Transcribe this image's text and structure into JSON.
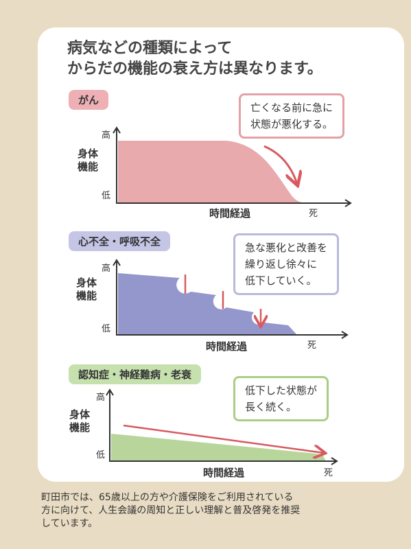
{
  "header": {
    "title_lines": [
      "病気などの種類によって",
      "からだの機能の衰え方は異なります。"
    ]
  },
  "panels": [
    {
      "tag": "がん",
      "callout_lines": [
        "亡くなる前に急に",
        "状態が悪化する。"
      ],
      "y_label": "身体機能",
      "y_high": "高",
      "y_low": "低",
      "x_label": "時間経過",
      "end_label": "死"
    },
    {
      "tag": "心不全・呼吸不全",
      "callout_lines": [
        "急な悪化と改善を",
        "繰り返し徐々に",
        "低下していく。"
      ],
      "y_label": "身体機能",
      "y_high": "高",
      "y_low": "低",
      "x_label": "時間経過",
      "end_label": "死"
    },
    {
      "tag": "認知症・神経難病・老衰",
      "callout_lines": [
        "低下した状態が",
        "長く続く。"
      ],
      "y_label": "身体機能",
      "y_high": "高",
      "y_low": "低",
      "x_label": "時間経過",
      "end_label": "死"
    }
  ],
  "footer": {
    "lines": [
      "町田市では、65歳以上の方や介護保険をご利用されている",
      "方に向けて、人生会議の周知と正しい理解と普及啓発を推奨",
      "しています。"
    ]
  }
}
